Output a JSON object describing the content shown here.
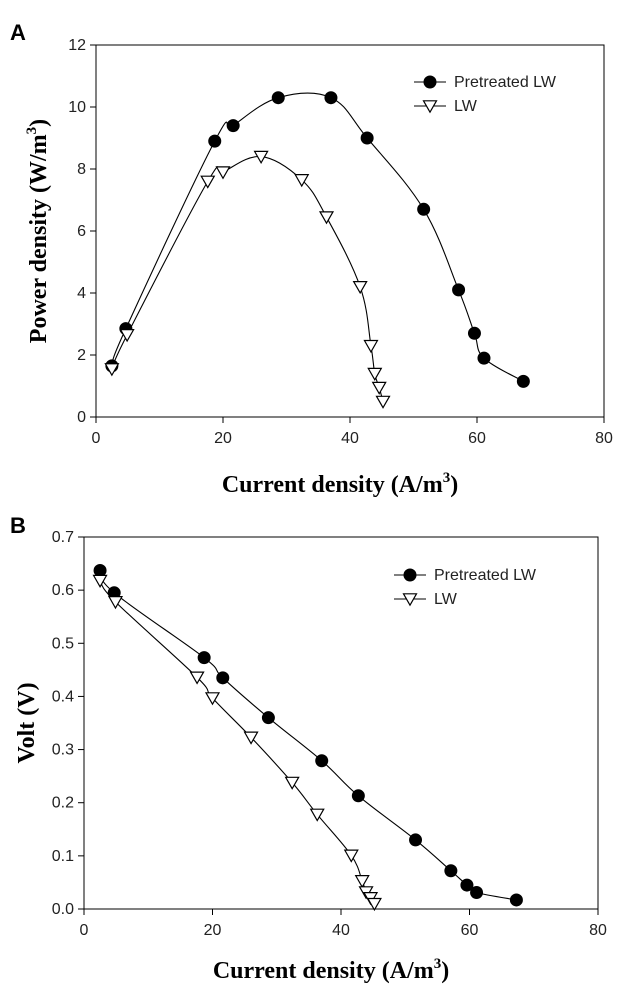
{
  "chart_data": [
    {
      "type": "line",
      "panel_label": "A",
      "xlabel": "Current density (A/m",
      "xlabel_sup": "3",
      "xlabel_tail": ")",
      "ylabel": "Power density (W/m",
      "ylabel_sup": "3",
      "ylabel_tail": ")",
      "xlim": [
        0,
        80
      ],
      "ylim": [
        0,
        12
      ],
      "xticks": [
        0,
        20,
        40,
        60,
        80
      ],
      "yticks": [
        0,
        2,
        4,
        6,
        8,
        10,
        12
      ],
      "legend_position": "top-right",
      "grid": false,
      "series": [
        {
          "name": "Pretreated LW",
          "marker": "filled-circle",
          "x": [
            2.5,
            4.7,
            18.7,
            21.6,
            28.7,
            37.0,
            42.7,
            51.6,
            57.1,
            59.6,
            61.1,
            67.3
          ],
          "y": [
            1.65,
            2.85,
            8.9,
            9.4,
            10.3,
            10.3,
            9.0,
            6.7,
            4.1,
            2.7,
            1.9,
            1.15
          ]
        },
        {
          "name": "LW",
          "marker": "open-triangle-down",
          "x": [
            2.5,
            4.9,
            17.6,
            20.0,
            26.0,
            32.4,
            36.3,
            41.6,
            43.3,
            43.9,
            44.6,
            45.2
          ],
          "y": [
            1.55,
            2.65,
            7.6,
            7.9,
            8.4,
            7.65,
            6.45,
            4.2,
            2.3,
            1.4,
            0.95,
            0.5
          ]
        }
      ]
    },
    {
      "type": "line",
      "panel_label": "B",
      "xlabel": "Current density (A/m",
      "xlabel_sup": "3",
      "xlabel_tail": ")",
      "ylabel": "Volt (V)",
      "xlim": [
        0,
        80
      ],
      "ylim": [
        0,
        0.7
      ],
      "xticks": [
        0,
        20,
        40,
        60,
        80
      ],
      "yticks": [
        0.0,
        0.1,
        0.2,
        0.3,
        0.4,
        0.5,
        0.6,
        0.7
      ],
      "ytick_labels": [
        "0.0",
        "0.1",
        "0.2",
        "0.3",
        "0.4",
        "0.5",
        "0.6",
        "0.7"
      ],
      "legend_position": "top-right",
      "grid": false,
      "series": [
        {
          "name": "Pretreated LW",
          "marker": "filled-circle",
          "x": [
            2.5,
            4.7,
            18.7,
            21.6,
            28.7,
            37.0,
            42.7,
            51.6,
            57.1,
            59.6,
            61.1,
            67.3
          ],
          "y": [
            0.637,
            0.595,
            0.473,
            0.435,
            0.36,
            0.279,
            0.213,
            0.13,
            0.072,
            0.045,
            0.031,
            0.017
          ]
        },
        {
          "name": "LW",
          "marker": "open-triangle-down",
          "x": [
            2.5,
            4.9,
            17.6,
            20.0,
            26.0,
            32.4,
            36.3,
            41.6,
            43.3,
            43.9,
            44.6,
            45.2
          ],
          "y": [
            0.618,
            0.578,
            0.436,
            0.397,
            0.323,
            0.238,
            0.178,
            0.101,
            0.053,
            0.032,
            0.021,
            0.01
          ]
        }
      ]
    }
  ]
}
